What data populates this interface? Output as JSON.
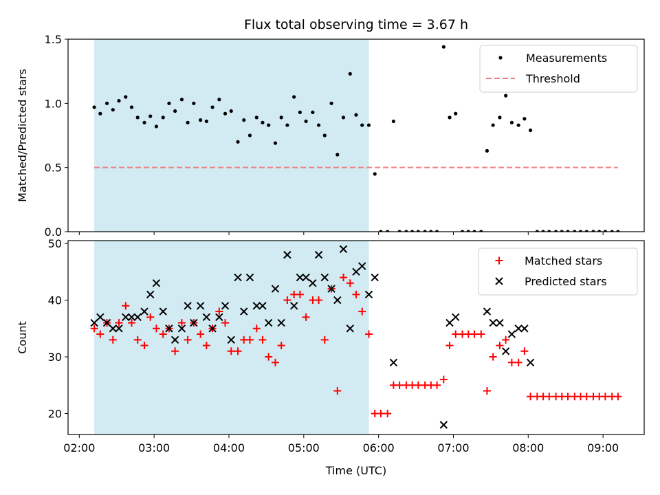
{
  "chart_data": {
    "title": "Flux total observing time = 3.67 h",
    "xlabel": "Time (UTC)",
    "x_ticks": [
      "02:00",
      "03:00",
      "04:00",
      "05:00",
      "06:00",
      "07:00",
      "08:00",
      "09:00"
    ],
    "x_unit": "hours UTC",
    "xlim": [
      1.85,
      9.55
    ],
    "shaded_span": {
      "start": 2.2,
      "end": 5.87,
      "color": "#add8e6"
    },
    "panels": [
      {
        "type": "scatter",
        "ylabel": "Matched/Predicted stars",
        "ylim": [
          0.0,
          1.5
        ],
        "y_ticks": [
          0.0,
          0.5,
          1.0,
          1.5
        ],
        "legend_position": "top-right",
        "series": [
          {
            "name": "Measurements",
            "marker": "dot",
            "color": "#000000",
            "points": [
              [
                2.2,
                0.97
              ],
              [
                2.28,
                0.92
              ],
              [
                2.37,
                1.0
              ],
              [
                2.45,
                0.95
              ],
              [
                2.53,
                1.02
              ],
              [
                2.62,
                1.05
              ],
              [
                2.7,
                0.97
              ],
              [
                2.78,
                0.89
              ],
              [
                2.87,
                0.85
              ],
              [
                2.95,
                0.9
              ],
              [
                3.03,
                0.82
              ],
              [
                3.12,
                0.89
              ],
              [
                3.2,
                1.0
              ],
              [
                3.28,
                0.94
              ],
              [
                3.37,
                1.03
              ],
              [
                3.45,
                0.85
              ],
              [
                3.53,
                1.0
              ],
              [
                3.62,
                0.87
              ],
              [
                3.7,
                0.86
              ],
              [
                3.78,
                0.97
              ],
              [
                3.87,
                1.03
              ],
              [
                3.95,
                0.92
              ],
              [
                4.03,
                0.94
              ],
              [
                4.12,
                0.7
              ],
              [
                4.2,
                0.87
              ],
              [
                4.28,
                0.75
              ],
              [
                4.37,
                0.89
              ],
              [
                4.45,
                0.85
              ],
              [
                4.53,
                0.83
              ],
              [
                4.62,
                0.69
              ],
              [
                4.7,
                0.89
              ],
              [
                4.78,
                0.83
              ],
              [
                4.87,
                1.05
              ],
              [
                4.95,
                0.93
              ],
              [
                5.03,
                0.86
              ],
              [
                5.12,
                0.93
              ],
              [
                5.2,
                0.83
              ],
              [
                5.28,
                0.75
              ],
              [
                5.37,
                1.0
              ],
              [
                5.45,
                0.6
              ],
              [
                5.53,
                0.89
              ],
              [
                5.62,
                1.23
              ],
              [
                5.7,
                0.91
              ],
              [
                5.78,
                0.83
              ],
              [
                5.87,
                0.83
              ],
              [
                5.95,
                0.45
              ],
              [
                6.03,
                0.0
              ],
              [
                6.12,
                0.0
              ],
              [
                6.2,
                0.86
              ],
              [
                6.28,
                0.0
              ],
              [
                6.37,
                0.0
              ],
              [
                6.45,
                0.0
              ],
              [
                6.53,
                0.0
              ],
              [
                6.62,
                0.0
              ],
              [
                6.7,
                0.0
              ],
              [
                6.78,
                0.0
              ],
              [
                6.87,
                1.44
              ],
              [
                6.95,
                0.89
              ],
              [
                7.03,
                0.92
              ],
              [
                7.12,
                0.0
              ],
              [
                7.2,
                0.0
              ],
              [
                7.28,
                0.0
              ],
              [
                7.37,
                0.0
              ],
              [
                7.45,
                0.63
              ],
              [
                7.53,
                0.83
              ],
              [
                7.62,
                0.89
              ],
              [
                7.7,
                1.06
              ],
              [
                7.78,
                0.85
              ],
              [
                7.87,
                0.83
              ],
              [
                7.95,
                0.88
              ],
              [
                8.03,
                0.79
              ],
              [
                8.12,
                0.0
              ],
              [
                8.2,
                0.0
              ],
              [
                8.28,
                0.0
              ],
              [
                8.37,
                0.0
              ],
              [
                8.45,
                0.0
              ],
              [
                8.53,
                0.0
              ],
              [
                8.62,
                0.0
              ],
              [
                8.7,
                0.0
              ],
              [
                8.78,
                0.0
              ],
              [
                8.87,
                0.0
              ],
              [
                8.95,
                0.0
              ],
              [
                9.03,
                0.0
              ],
              [
                9.12,
                0.0
              ],
              [
                9.2,
                0.0
              ]
            ]
          },
          {
            "name": "Threshold",
            "marker": "dashed-line",
            "color": "#f08080",
            "points": [
              [
                2.2,
                0.5
              ],
              [
                9.2,
                0.5
              ]
            ]
          }
        ]
      },
      {
        "type": "scatter",
        "ylabel": "Count",
        "ylim": [
          16.3,
          50.5
        ],
        "y_ticks": [
          20,
          30,
          40,
          50
        ],
        "legend_position": "top-right",
        "series": [
          {
            "name": "Matched stars",
            "marker": "plus",
            "color": "#ff0000",
            "points": [
              [
                2.2,
                35
              ],
              [
                2.28,
                34
              ],
              [
                2.37,
                36
              ],
              [
                2.45,
                33
              ],
              [
                2.53,
                36
              ],
              [
                2.62,
                39
              ],
              [
                2.7,
                36
              ],
              [
                2.78,
                33
              ],
              [
                2.87,
                32
              ],
              [
                2.95,
                37
              ],
              [
                3.03,
                35
              ],
              [
                3.12,
                34
              ],
              [
                3.2,
                35
              ],
              [
                3.28,
                31
              ],
              [
                3.37,
                36
              ],
              [
                3.45,
                33
              ],
              [
                3.53,
                36
              ],
              [
                3.62,
                34
              ],
              [
                3.7,
                32
              ],
              [
                3.78,
                35
              ],
              [
                3.87,
                38
              ],
              [
                3.95,
                36
              ],
              [
                4.03,
                31
              ],
              [
                4.12,
                31
              ],
              [
                4.2,
                33
              ],
              [
                4.28,
                33
              ],
              [
                4.37,
                35
              ],
              [
                4.45,
                33
              ],
              [
                4.53,
                30
              ],
              [
                4.62,
                29
              ],
              [
                4.7,
                32
              ],
              [
                4.78,
                40
              ],
              [
                4.87,
                41
              ],
              [
                4.95,
                41
              ],
              [
                5.03,
                37
              ],
              [
                5.12,
                40
              ],
              [
                5.2,
                40
              ],
              [
                5.28,
                33
              ],
              [
                5.37,
                42
              ],
              [
                5.45,
                24
              ],
              [
                5.53,
                44
              ],
              [
                5.62,
                43
              ],
              [
                5.7,
                41
              ],
              [
                5.78,
                38
              ],
              [
                5.87,
                34
              ],
              [
                5.95,
                20
              ],
              [
                6.03,
                20
              ],
              [
                6.12,
                20
              ],
              [
                6.2,
                25
              ],
              [
                6.28,
                25
              ],
              [
                6.37,
                25
              ],
              [
                6.45,
                25
              ],
              [
                6.53,
                25
              ],
              [
                6.62,
                25
              ],
              [
                6.7,
                25
              ],
              [
                6.78,
                25
              ],
              [
                6.87,
                26
              ],
              [
                6.95,
                32
              ],
              [
                7.03,
                34
              ],
              [
                7.12,
                34
              ],
              [
                7.2,
                34
              ],
              [
                7.28,
                34
              ],
              [
                7.37,
                34
              ],
              [
                7.45,
                24
              ],
              [
                7.53,
                30
              ],
              [
                7.62,
                32
              ],
              [
                7.7,
                33
              ],
              [
                7.78,
                29
              ],
              [
                7.87,
                29
              ],
              [
                7.95,
                31
              ],
              [
                8.03,
                23
              ],
              [
                8.12,
                23
              ],
              [
                8.2,
                23
              ],
              [
                8.28,
                23
              ],
              [
                8.37,
                23
              ],
              [
                8.45,
                23
              ],
              [
                8.53,
                23
              ],
              [
                8.62,
                23
              ],
              [
                8.7,
                23
              ],
              [
                8.78,
                23
              ],
              [
                8.87,
                23
              ],
              [
                8.95,
                23
              ],
              [
                9.03,
                23
              ],
              [
                9.12,
                23
              ],
              [
                9.2,
                23
              ]
            ]
          },
          {
            "name": "Predicted stars",
            "marker": "x",
            "color": "#000000",
            "points": [
              [
                2.2,
                36
              ],
              [
                2.28,
                37
              ],
              [
                2.37,
                36
              ],
              [
                2.45,
                35
              ],
              [
                2.53,
                35
              ],
              [
                2.62,
                37
              ],
              [
                2.7,
                37
              ],
              [
                2.78,
                37
              ],
              [
                2.87,
                38
              ],
              [
                2.95,
                41
              ],
              [
                3.03,
                43
              ],
              [
                3.12,
                38
              ],
              [
                3.2,
                35
              ],
              [
                3.28,
                33
              ],
              [
                3.37,
                35
              ],
              [
                3.45,
                39
              ],
              [
                3.53,
                36
              ],
              [
                3.62,
                39
              ],
              [
                3.7,
                37
              ],
              [
                3.78,
                35
              ],
              [
                3.87,
                37
              ],
              [
                3.95,
                39
              ],
              [
                4.03,
                33
              ],
              [
                4.12,
                44
              ],
              [
                4.2,
                38
              ],
              [
                4.28,
                44
              ],
              [
                4.37,
                39
              ],
              [
                4.45,
                39
              ],
              [
                4.53,
                36
              ],
              [
                4.62,
                42
              ],
              [
                4.7,
                36
              ],
              [
                4.78,
                48
              ],
              [
                4.87,
                39
              ],
              [
                4.95,
                44
              ],
              [
                5.03,
                44
              ],
              [
                5.12,
                43
              ],
              [
                5.2,
                48
              ],
              [
                5.28,
                44
              ],
              [
                5.37,
                42
              ],
              [
                5.45,
                40
              ],
              [
                5.53,
                49
              ],
              [
                5.62,
                35
              ],
              [
                5.7,
                45
              ],
              [
                5.78,
                46
              ],
              [
                5.87,
                41
              ],
              [
                5.95,
                44
              ],
              [
                6.2,
                29
              ],
              [
                6.87,
                18
              ],
              [
                6.95,
                36
              ],
              [
                7.03,
                37
              ],
              [
                7.45,
                38
              ],
              [
                7.53,
                36
              ],
              [
                7.62,
                36
              ],
              [
                7.7,
                31
              ],
              [
                7.78,
                34
              ],
              [
                7.87,
                35
              ],
              [
                7.95,
                35
              ],
              [
                8.03,
                29
              ]
            ]
          }
        ]
      }
    ]
  }
}
